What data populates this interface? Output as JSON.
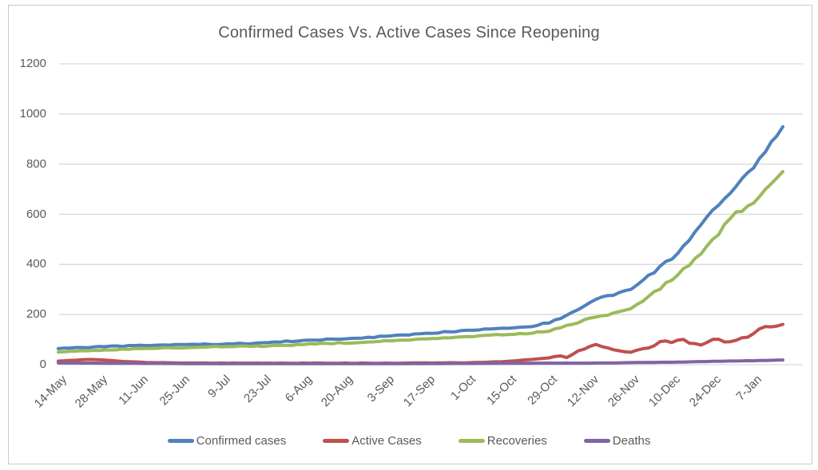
{
  "window": {
    "background": "#FFFFFF",
    "border_color": "#C9C9C9"
  },
  "chart_data": {
    "type": "line",
    "title": "Confirmed Cases Vs. Active Cases Since Reopening",
    "xlabel": "",
    "ylabel": "",
    "x_tick_labels": [
      "14-May",
      "28-May",
      "11-Jun",
      "25-Jun",
      "9-Jul",
      "23-Jul",
      "6-Aug",
      "20-Aug",
      "3-Sep",
      "17-Sep",
      "1-Oct",
      "15-Oct",
      "29-Oct",
      "12-Nov",
      "26-Nov",
      "10-Dec",
      "24-Dec",
      "7-Jan"
    ],
    "x_tick_interval_days": 14,
    "x_domain_days": [
      0,
      248
    ],
    "y_ticks": [
      0,
      200,
      400,
      600,
      800,
      1000,
      1200
    ],
    "ylim": [
      0,
      1200
    ],
    "grid": "horizontal gridlines only",
    "grid_color": "#D9D9D9",
    "axis_text_color": "#595959",
    "legend_position": "bottom center",
    "series": [
      {
        "name": "Confirmed cases",
        "color": "#4F81BD",
        "points_day_value": [
          [
            0,
            65
          ],
          [
            7,
            68
          ],
          [
            14,
            71
          ],
          [
            21,
            74
          ],
          [
            28,
            76
          ],
          [
            35,
            78
          ],
          [
            42,
            80
          ],
          [
            49,
            81
          ],
          [
            56,
            82
          ],
          [
            63,
            84
          ],
          [
            70,
            87
          ],
          [
            77,
            92
          ],
          [
            84,
            96
          ],
          [
            91,
            100
          ],
          [
            98,
            103
          ],
          [
            105,
            108
          ],
          [
            112,
            113
          ],
          [
            119,
            118
          ],
          [
            126,
            124
          ],
          [
            133,
            131
          ],
          [
            140,
            138
          ],
          [
            147,
            143
          ],
          [
            154,
            147
          ],
          [
            161,
            151
          ],
          [
            168,
            168
          ],
          [
            175,
            200
          ],
          [
            182,
            250
          ],
          [
            185,
            264
          ],
          [
            189,
            278
          ],
          [
            196,
            298
          ],
          [
            203,
            362
          ],
          [
            210,
            425
          ],
          [
            217,
            510
          ],
          [
            224,
            612
          ],
          [
            231,
            700
          ],
          [
            238,
            788
          ],
          [
            242,
            845
          ],
          [
            245,
            900
          ],
          [
            248,
            953
          ]
        ]
      },
      {
        "name": "Active Cases",
        "color": "#C0504D",
        "points_day_value": [
          [
            0,
            15
          ],
          [
            5,
            17
          ],
          [
            10,
            21
          ],
          [
            14,
            19
          ],
          [
            21,
            14
          ],
          [
            28,
            10
          ],
          [
            35,
            8
          ],
          [
            42,
            7
          ],
          [
            56,
            6
          ],
          [
            70,
            6
          ],
          [
            84,
            6
          ],
          [
            98,
            6
          ],
          [
            112,
            6
          ],
          [
            126,
            7
          ],
          [
            140,
            8
          ],
          [
            147,
            10
          ],
          [
            154,
            13
          ],
          [
            161,
            20
          ],
          [
            165,
            24
          ],
          [
            168,
            28
          ],
          [
            171,
            37
          ],
          [
            174,
            28
          ],
          [
            178,
            55
          ],
          [
            182,
            70
          ],
          [
            184,
            79
          ],
          [
            187,
            72
          ],
          [
            189,
            65
          ],
          [
            192,
            58
          ],
          [
            196,
            50
          ],
          [
            200,
            62
          ],
          [
            203,
            72
          ],
          [
            207,
            95
          ],
          [
            210,
            92
          ],
          [
            213,
            100
          ],
          [
            216,
            88
          ],
          [
            219,
            76
          ],
          [
            221,
            82
          ],
          [
            224,
            105
          ],
          [
            226,
            99
          ],
          [
            229,
            86
          ],
          [
            231,
            90
          ],
          [
            234,
            105
          ],
          [
            237,
            118
          ],
          [
            240,
            140
          ],
          [
            242,
            150
          ],
          [
            243,
            157
          ],
          [
            245,
            146
          ],
          [
            246,
            152
          ],
          [
            248,
            164
          ]
        ]
      },
      {
        "name": "Recoveries",
        "color": "#9BBB59",
        "points_day_value": [
          [
            0,
            51
          ],
          [
            7,
            54
          ],
          [
            14,
            58
          ],
          [
            21,
            61
          ],
          [
            28,
            63
          ],
          [
            35,
            66
          ],
          [
            42,
            68
          ],
          [
            49,
            70
          ],
          [
            56,
            72
          ],
          [
            63,
            73
          ],
          [
            70,
            74
          ],
          [
            77,
            77
          ],
          [
            84,
            81
          ],
          [
            91,
            84
          ],
          [
            98,
            87
          ],
          [
            105,
            90
          ],
          [
            112,
            94
          ],
          [
            119,
            98
          ],
          [
            126,
            102
          ],
          [
            133,
            106
          ],
          [
            140,
            111
          ],
          [
            147,
            116
          ],
          [
            154,
            121
          ],
          [
            161,
            124
          ],
          [
            168,
            135
          ],
          [
            175,
            158
          ],
          [
            182,
            185
          ],
          [
            189,
            200
          ],
          [
            196,
            225
          ],
          [
            203,
            280
          ],
          [
            210,
            340
          ],
          [
            217,
            410
          ],
          [
            224,
            495
          ],
          [
            231,
            598
          ],
          [
            235,
            622
          ],
          [
            238,
            650
          ],
          [
            242,
            700
          ],
          [
            245,
            740
          ],
          [
            248,
            773
          ]
        ]
      },
      {
        "name": "Deaths",
        "color": "#8064A2",
        "points_day_value": [
          [
            0,
            7
          ],
          [
            28,
            5
          ],
          [
            56,
            4
          ],
          [
            84,
            4
          ],
          [
            112,
            4
          ],
          [
            140,
            5
          ],
          [
            168,
            6
          ],
          [
            182,
            6
          ],
          [
            196,
            8
          ],
          [
            210,
            10
          ],
          [
            224,
            13
          ],
          [
            238,
            16
          ],
          [
            248,
            19
          ]
        ]
      }
    ]
  }
}
